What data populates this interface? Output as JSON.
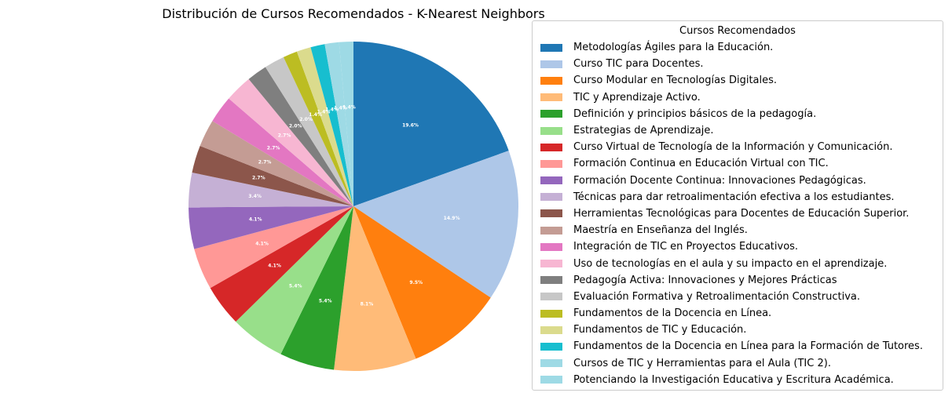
{
  "chart_data": {
    "type": "pie",
    "title": "Distribución de Cursos Recomendados - K-Nearest Neighbors",
    "legend_title": "Cursos Recomendados",
    "legend_position": "right",
    "start_angle_deg": 90,
    "direction": "clockwise",
    "slices": [
      {
        "label": "Metodologías Ágiles para la Educación.",
        "value": 19.6,
        "pct_label": "19.6%",
        "color": "#1f77b4"
      },
      {
        "label": "Curso TIC para Docentes.",
        "value": 14.9,
        "pct_label": "14.9%",
        "color": "#aec7e8"
      },
      {
        "label": "Curso Modular en Tecnologías Digitales.",
        "value": 9.5,
        "pct_label": "9.5%",
        "color": "#ff7f0e"
      },
      {
        "label": "TIC y Aprendizaje Activo.",
        "value": 8.1,
        "pct_label": "8.1%",
        "color": "#ffbb78"
      },
      {
        "label": "Definición y principios básicos de la pedagogía.",
        "value": 5.4,
        "pct_label": "5.4%",
        "color": "#2ca02c"
      },
      {
        "label": "Estrategias de Aprendizaje.",
        "value": 5.4,
        "pct_label": "5.4%",
        "color": "#98df8a"
      },
      {
        "label": "Curso Virtual de Tecnología de la Información y Comunicación.",
        "value": 4.1,
        "pct_label": "4.1%",
        "color": "#d62728"
      },
      {
        "label": "Formación Continua en Educación Virtual con TIC.",
        "value": 4.1,
        "pct_label": "4.1%",
        "color": "#ff9896"
      },
      {
        "label": "Formación Docente Continua: Innovaciones Pedagógicas.",
        "value": 4.1,
        "pct_label": "4.1%",
        "color": "#9467bd"
      },
      {
        "label": "Técnicas para dar retroalimentación efectiva a los estudiantes.",
        "value": 3.4,
        "pct_label": "3.4%",
        "color": "#c5b0d5"
      },
      {
        "label": "Herramientas Tecnológicas para Docentes de Educación Superior.",
        "value": 2.7,
        "pct_label": "2.7%",
        "color": "#8c564b"
      },
      {
        "label": "Maestría en Enseñanza del Inglés.",
        "value": 2.7,
        "pct_label": "2.7%",
        "color": "#c49c94"
      },
      {
        "label": "Integración de TIC en Proyectos Educativos.",
        "value": 2.7,
        "pct_label": "2.7%",
        "color": "#e377c2"
      },
      {
        "label": "Uso de tecnologías en el aula y su impacto en el aprendizaje.",
        "value": 2.7,
        "pct_label": "2.7%",
        "color": "#f7b6d2"
      },
      {
        "label": "Pedagogía Activa: Innovaciones y Mejores Prácticas",
        "value": 2.0,
        "pct_label": "2.0%",
        "color": "#7f7f7f"
      },
      {
        "label": "Evaluación Formativa y Retroalimentación Constructiva.",
        "value": 2.0,
        "pct_label": "2.0%",
        "color": "#c7c7c7"
      },
      {
        "label": "Fundamentos de la Docencia en Línea.",
        "value": 1.4,
        "pct_label": "1.4%",
        "color": "#bcbd22"
      },
      {
        "label": "Fundamentos de TIC y Educación.",
        "value": 1.4,
        "pct_label": "1.4%",
        "color": "#dbdb8d"
      },
      {
        "label": "Fundamentos de la Docencia en Línea para la Formación de Tutores.",
        "value": 1.4,
        "pct_label": "1.4%",
        "color": "#17becf"
      },
      {
        "label": "Cursos de TIC y Herramientas para el Aula (TIC 2).",
        "value": 1.4,
        "pct_label": "1.4%",
        "color": "#9edae5"
      },
      {
        "label": "Potenciando la Investigación Educativa y Escritura Académica.",
        "value": 1.4,
        "pct_label": "1.4%",
        "color": "#9edae5"
      }
    ]
  }
}
